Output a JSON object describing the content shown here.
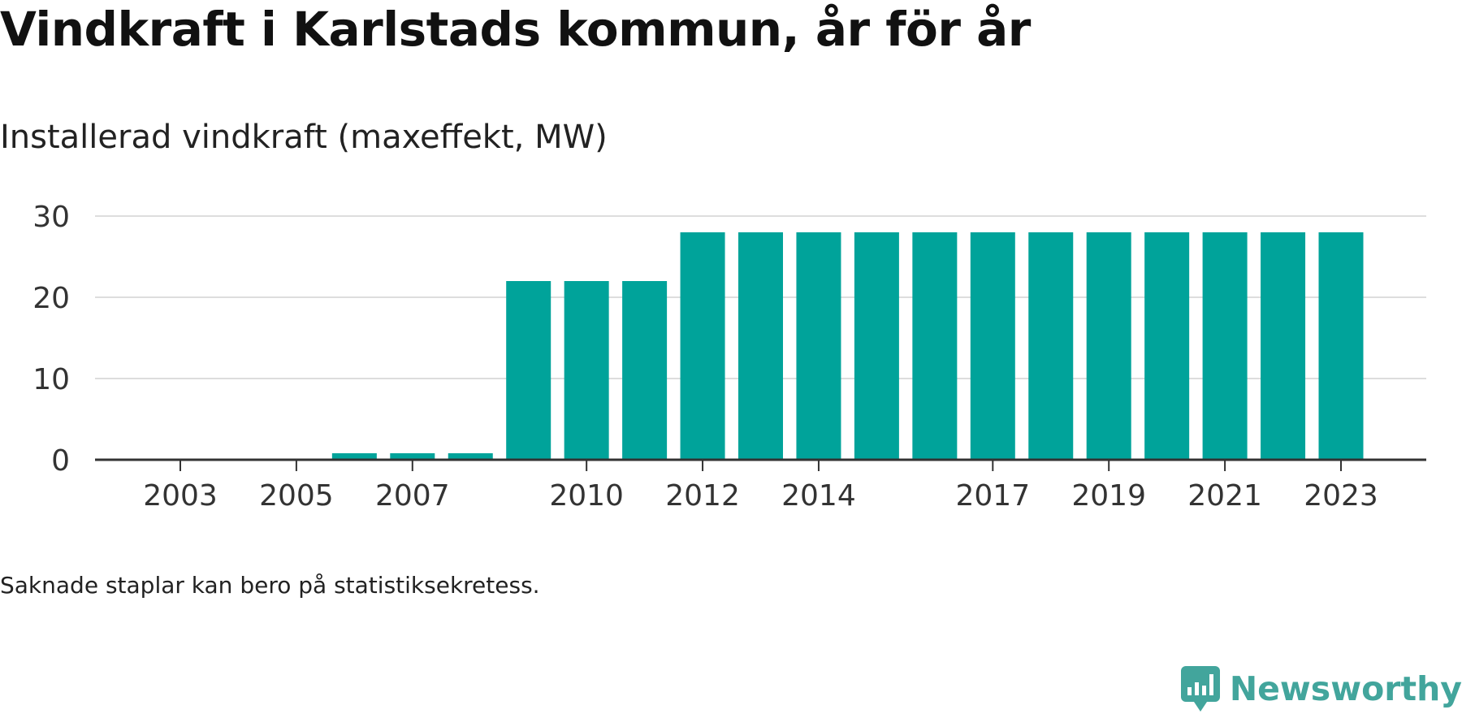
{
  "title": "Vindkraft i Karlstads kommun, år för år",
  "subtitle": "Installerad vindkraft (maxeffekt, MW)",
  "note": "Saknade staplar kan bero på statistiksekretess.",
  "brand": {
    "name": "Newsworthy",
    "color": "#42a59c"
  },
  "colors": {
    "bar": "#00a39a",
    "grid": "#dddddd",
    "axis": "#333333",
    "tick_text": "#333333"
  },
  "chart_data": {
    "type": "bar",
    "title": "Vindkraft i Karlstads kommun, år för år",
    "subtitle": "Installerad vindkraft (maxeffekt, MW)",
    "xlabel": "",
    "ylabel": "",
    "categories": [
      2003,
      2004,
      2005,
      2006,
      2007,
      2008,
      2009,
      2010,
      2011,
      2012,
      2013,
      2014,
      2015,
      2016,
      2017,
      2018,
      2019,
      2020,
      2021,
      2022,
      2023
    ],
    "values": [
      0,
      0,
      0,
      0.8,
      0.8,
      0.8,
      22,
      22,
      22,
      28,
      28,
      28,
      28,
      28,
      28,
      28,
      28,
      28,
      28,
      28,
      28
    ],
    "x_ticks": [
      2003,
      2005,
      2007,
      2010,
      2012,
      2014,
      2017,
      2019,
      2021,
      2023
    ],
    "y_ticks": [
      0,
      10,
      20,
      30
    ],
    "ylim": [
      0,
      30
    ],
    "grid": true,
    "legend": "none"
  }
}
